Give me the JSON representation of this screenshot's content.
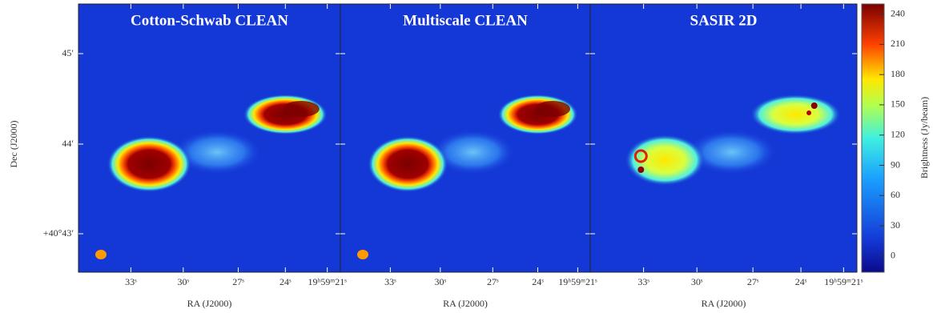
{
  "figure": {
    "panels": [
      {
        "title": "Cotton-Schwab CLEAN",
        "x_label": "RA (J2000)",
        "xticks": [
          "33ˢ",
          "30ˢ",
          "27ˢ",
          "24ˢ",
          "19ʰ59ᵐ21ˢ"
        ]
      },
      {
        "title": "Multiscale CLEAN",
        "x_label": "RA (J2000)",
        "xticks": [
          "33ˢ",
          "30ˢ",
          "27ˢ",
          "24ˢ",
          "19ʰ59ᵐ21ˢ"
        ]
      },
      {
        "title": "SASIR 2D",
        "x_label": "RA (J2000)",
        "xticks": [
          "33ˢ",
          "30ˢ",
          "27ˢ",
          "24ˢ",
          "19ʰ59ᵐ21ˢ"
        ]
      }
    ],
    "y_label": "Dec (J2000)",
    "yticks": [
      "45′",
      "44′",
      "+40°43′"
    ],
    "colorbar": {
      "label": "Brightness (Jy/beam)",
      "lim": [
        -16,
        250
      ],
      "ticks": [
        0,
        30,
        60,
        90,
        120,
        150,
        180,
        210,
        240
      ]
    }
  }
}
